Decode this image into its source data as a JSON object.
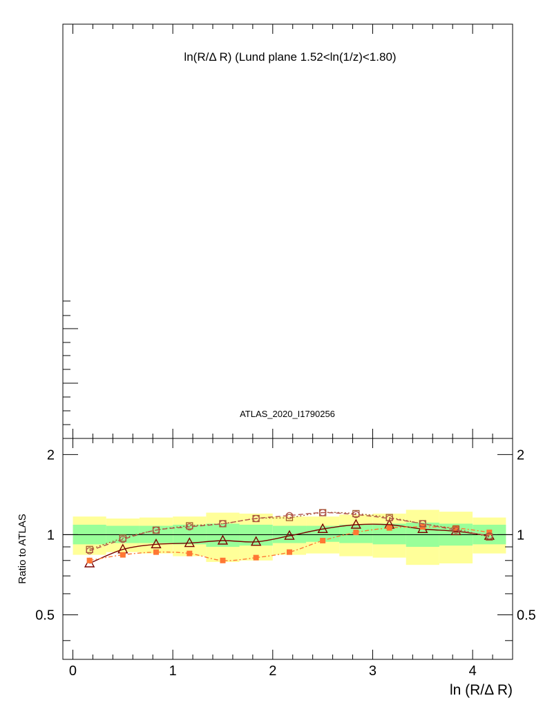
{
  "chart_data": [
    {
      "type": "line",
      "panel": "main",
      "title": "ln(R/Δ R) (Lund plane 1.52<ln(1/z)<1.80)",
      "annotation": "ATLAS_2020_I1790256",
      "series": []
    },
    {
      "type": "line",
      "panel": "ratio",
      "xlabel": "ln (R/Δ R)",
      "ylabel": "Ratio to ATLAS",
      "xlim": [
        -0.1,
        4.4
      ],
      "ylim": [
        0.34,
        2.3
      ],
      "y_scale": "log",
      "xticks": [
        "0",
        "1",
        "2",
        "3",
        "4"
      ],
      "yticks": [
        "0.5",
        "1",
        "2"
      ],
      "reference_line": 1,
      "x": [
        0.167,
        0.5,
        0.833,
        1.167,
        1.5,
        1.833,
        2.167,
        2.5,
        2.833,
        3.167,
        3.5,
        3.833,
        4.167
      ],
      "bands": [
        {
          "name": "inner",
          "color": "#99ff99",
          "lo": [
            0.92,
            0.93,
            0.93,
            0.92,
            0.9,
            0.91,
            0.93,
            0.94,
            0.93,
            0.92,
            0.9,
            0.91,
            0.92
          ],
          "hi": [
            1.09,
            1.08,
            1.08,
            1.09,
            1.1,
            1.09,
            1.08,
            1.08,
            1.09,
            1.1,
            1.11,
            1.1,
            1.09
          ]
        },
        {
          "name": "outer",
          "color": "#ffff99",
          "lo": [
            0.84,
            0.86,
            0.85,
            0.83,
            0.79,
            0.8,
            0.84,
            0.85,
            0.83,
            0.82,
            0.77,
            0.78,
            0.85
          ],
          "hi": [
            1.17,
            1.15,
            1.16,
            1.17,
            1.21,
            1.2,
            1.17,
            1.17,
            1.19,
            1.2,
            1.24,
            1.22,
            1.16
          ]
        }
      ],
      "series": [
        {
          "color": "#7a0000",
          "marker": "open-triangle",
          "dash": "",
          "values": [
            0.78,
            0.88,
            0.92,
            0.93,
            0.95,
            0.94,
            0.99,
            1.05,
            1.09,
            1.09,
            1.05,
            1.03,
            0.99
          ]
        },
        {
          "color": "#ff7733",
          "marker": "filled-square",
          "dash": "6,3,2,3",
          "values": [
            0.8,
            0.84,
            0.86,
            0.85,
            0.8,
            0.82,
            0.86,
            0.95,
            1.02,
            1.06,
            1.07,
            1.06,
            1.02
          ]
        },
        {
          "color": "#a05a2c",
          "marker": "open-square",
          "dash": "2,3",
          "values": [
            0.88,
            0.97,
            1.04,
            1.08,
            1.1,
            1.15,
            1.16,
            1.21,
            1.2,
            1.16,
            1.1,
            1.05,
            0.98
          ]
        },
        {
          "color": "#b0504a",
          "marker": "open-circle",
          "dash": "7,4",
          "values": [
            0.87,
            0.96,
            1.04,
            1.07,
            1.1,
            1.15,
            1.18,
            1.21,
            1.19,
            1.15,
            1.1,
            1.04,
            0.99
          ]
        }
      ]
    }
  ]
}
